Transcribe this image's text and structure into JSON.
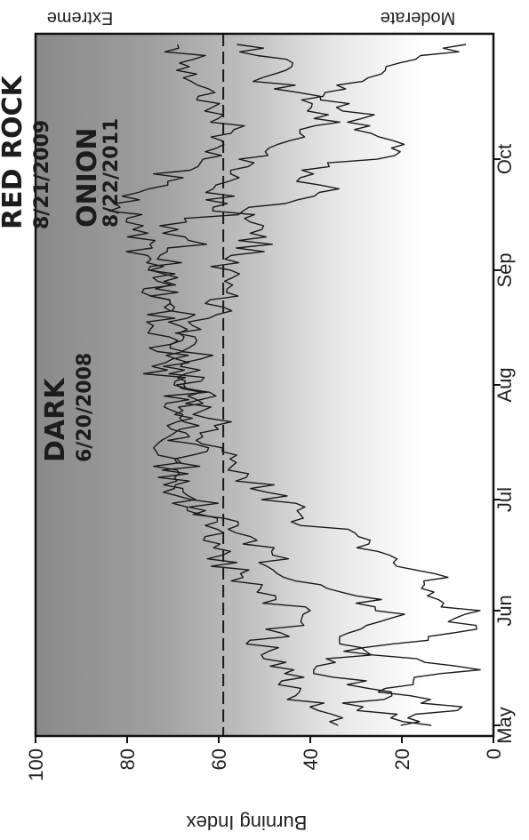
{
  "chart_data": {
    "type": "line",
    "orientation": "rotated 90 degrees (x axis runs top-to-bottom, y axis runs left-to-right)",
    "ylabel": "Burning Index",
    "ylim": [
      0,
      100
    ],
    "y_ticks": [
      0,
      20,
      40,
      60,
      80,
      100
    ],
    "y_tick_labels": [
      "0",
      "20",
      "40",
      "60",
      "80",
      "100"
    ],
    "x_ticks": [
      "May",
      "Jun",
      "Jul",
      "Aug",
      "Sep",
      "Oct"
    ],
    "x_start": "May 1",
    "x_end": "Oct 31",
    "threshold": {
      "value": 59,
      "style": "dashed"
    },
    "band_labels": {
      "high": "Extreme",
      "low": "Moderate"
    },
    "background": "gradient from white (low index) to dark gray (high index)",
    "annotations": [
      {
        "name": "DARK",
        "date": "6/20/2008"
      },
      {
        "name": "RED ROCK",
        "date": "8/21/2009"
      },
      {
        "name": "ONION",
        "date": "8/22/2011"
      }
    ],
    "series": [
      {
        "color": "#1a1a1a",
        "x_day": [
          0,
          5,
          10,
          15,
          20,
          25,
          30,
          35,
          40,
          45,
          50,
          55,
          60,
          65,
          70,
          75,
          80,
          85,
          90,
          95,
          100,
          105,
          110,
          115,
          120,
          125,
          130,
          135,
          140,
          145,
          150,
          155,
          160,
          165,
          170,
          175,
          180,
          184
        ],
        "values": [
          34,
          40,
          44,
          46,
          52,
          47,
          40,
          50,
          56,
          59,
          61,
          64,
          66,
          69,
          72,
          70,
          68,
          71,
          67,
          72,
          70,
          74,
          72,
          75,
          72,
          77,
          78,
          80,
          82,
          74,
          70,
          62,
          57,
          59,
          61,
          64,
          66,
          69
        ]
      },
      {
        "color": "#1a1a1a",
        "x_day": [
          0,
          5,
          10,
          15,
          20,
          25,
          30,
          35,
          40,
          45,
          50,
          55,
          60,
          65,
          70,
          75,
          80,
          85,
          90,
          95,
          100,
          105,
          110,
          115,
          120,
          125,
          130,
          135,
          140,
          145,
          150,
          155,
          160,
          165,
          170,
          175,
          180,
          184
        ],
        "values": [
          18,
          30,
          24,
          42,
          28,
          36,
          22,
          30,
          44,
          48,
          52,
          60,
          64,
          70,
          68,
          66,
          70,
          64,
          66,
          68,
          70,
          66,
          68,
          72,
          74,
          70,
          66,
          72,
          52,
          38,
          44,
          20,
          30,
          26,
          42,
          50,
          46,
          56
        ]
      },
      {
        "color": "#1a1a1a",
        "x_day": [
          0,
          5,
          10,
          15,
          20,
          25,
          30,
          35,
          40,
          45,
          50,
          55,
          60,
          65,
          70,
          75,
          80,
          85,
          90,
          95,
          100,
          105,
          110,
          115,
          120,
          125,
          130,
          135,
          140,
          145,
          150,
          155,
          160,
          165,
          170,
          175,
          180,
          184
        ],
        "values": [
          20,
          10,
          24,
          6,
          30,
          8,
          4,
          12,
          14,
          22,
          30,
          40,
          46,
          52,
          58,
          62,
          60,
          64,
          62,
          66,
          64,
          68,
          62,
          60,
          60,
          58,
          52,
          54,
          58,
          62,
          58,
          50,
          40,
          36,
          40,
          30,
          18,
          6
        ]
      }
    ]
  }
}
